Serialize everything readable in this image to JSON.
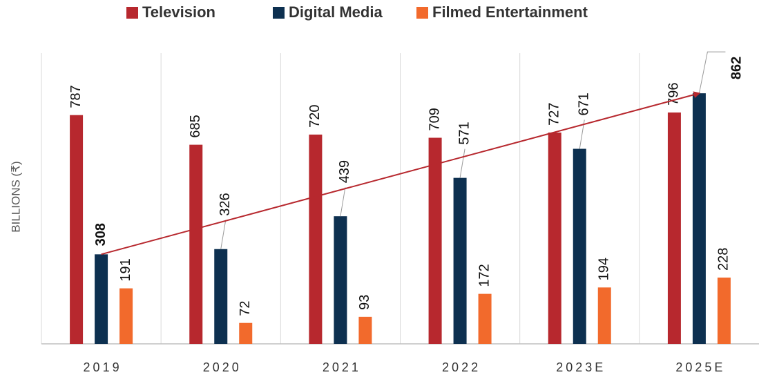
{
  "chart_data": {
    "type": "bar",
    "y_label": "BILLIONS (₹)",
    "categories": [
      "2019",
      "2020",
      "2021",
      "2022",
      "2023E",
      "2025E"
    ],
    "series": [
      {
        "name": "Television",
        "color": "#b7282e",
        "values": [
          787,
          685,
          720,
          709,
          727,
          796
        ]
      },
      {
        "name": "Digital Media",
        "color": "#0d3050",
        "values": [
          308,
          326,
          439,
          571,
          671,
          862
        ]
      },
      {
        "name": "Filmed Entertainment",
        "color": "#f26a2c",
        "values": [
          191,
          72,
          93,
          172,
          194,
          228
        ]
      }
    ],
    "ylim": [
      0,
      1000
    ],
    "trend_color": "#b7282e",
    "legend": "top"
  }
}
